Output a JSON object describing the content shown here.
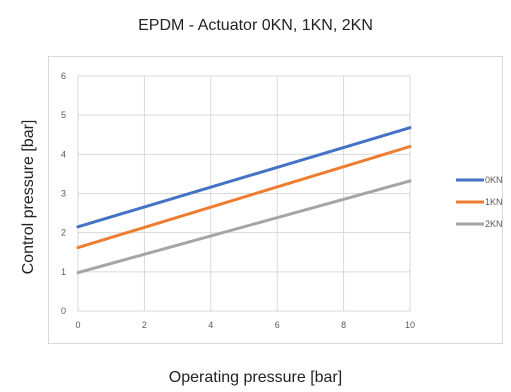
{
  "chart_data": {
    "type": "line",
    "title": "EPDM - Actuator 0KN, 1KN, 2KN",
    "xlabel": "Operating pressure [bar]",
    "ylabel": "Control pressure [bar]",
    "xlim": [
      0,
      10
    ],
    "ylim": [
      0,
      6
    ],
    "x_ticks": [
      0,
      2,
      4,
      6,
      8,
      10
    ],
    "y_ticks": [
      0,
      1,
      2,
      3,
      4,
      5,
      6
    ],
    "grid": true,
    "legend_position": "right",
    "series": [
      {
        "name": "0KN",
        "color": "#4472c4",
        "x": [
          0,
          10
        ],
        "y": [
          2.15,
          4.68
        ]
      },
      {
        "name": "1KN",
        "color": "#ed7d31",
        "x": [
          0,
          10
        ],
        "y": [
          1.62,
          4.2
        ]
      },
      {
        "name": "2KN",
        "color": "#a5a5a5",
        "x": [
          0,
          10
        ],
        "y": [
          0.98,
          3.32
        ]
      }
    ]
  }
}
